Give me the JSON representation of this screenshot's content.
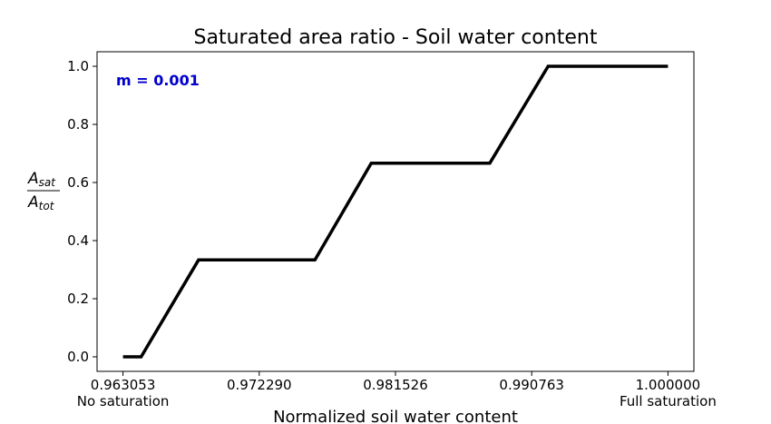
{
  "chart_data": {
    "type": "line",
    "title": "Saturated area ratio - Soil water content",
    "xlabel": "Normalized soil water content",
    "ylabel": {
      "main": "A",
      "num_sub": "sat",
      "den_sub": "tot"
    },
    "xlim": [
      0.961295,
      1.001758
    ],
    "ylim": [
      -0.05,
      1.05
    ],
    "xticks": [
      0.963053,
      0.97229,
      0.981526,
      0.990763,
      1.0
    ],
    "xtick_labels": [
      "0.963053",
      "0.972290",
      "0.981526",
      "0.990763",
      "1.000000"
    ],
    "xtick_sublabels": [
      "No saturation",
      "",
      "",
      "",
      "Full saturation"
    ],
    "yticks": [
      0.0,
      0.2,
      0.4,
      0.6,
      0.8,
      1.0
    ],
    "ytick_labels": [
      "0.0",
      "0.2",
      "0.4",
      "0.6",
      "0.8",
      "1.0"
    ],
    "annotation": "m = 0.001",
    "annotation_color": "#0000cc",
    "line_color": "#000000",
    "grid": false,
    "series": [
      {
        "x": [
          0.963053,
          0.964283,
          0.968175,
          0.976067,
          0.979885,
          0.987921,
          0.991873,
          1.0
        ],
        "y": [
          0.0,
          0.0,
          0.3333,
          0.3333,
          0.6667,
          0.6667,
          1.0,
          1.0
        ]
      }
    ]
  }
}
